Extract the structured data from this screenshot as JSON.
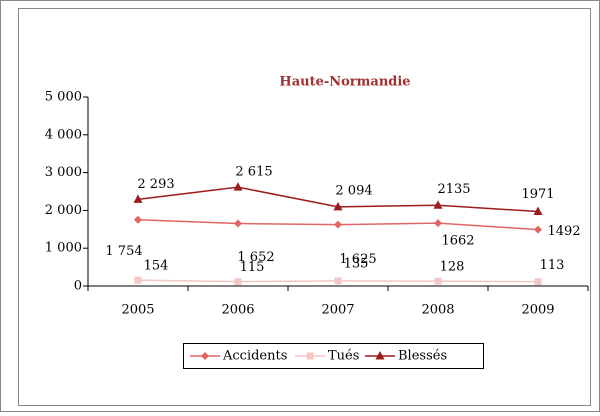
{
  "chart_data": {
    "type": "line",
    "title": "Haute-Normandie",
    "categories": [
      "2005",
      "2006",
      "2007",
      "2008",
      "2009"
    ],
    "series": [
      {
        "name": "Accidents",
        "color": "#e06666",
        "marker": "diamond",
        "values": [
          1754,
          1652,
          1625,
          1662,
          1492
        ],
        "value_labels": [
          "1 754",
          "1 652",
          "1 625",
          "1662",
          "1492"
        ]
      },
      {
        "name": "Tués",
        "color": "#f4c6c6",
        "marker": "square",
        "values": [
          154,
          115,
          135,
          128,
          113
        ]
      },
      {
        "name": "Blessés",
        "color": "#9b1c1c",
        "marker": "triangle",
        "values": [
          2293,
          2615,
          2094,
          2135,
          1971
        ],
        "value_labels": [
          "2 293",
          "2 615",
          "2 094",
          "2135",
          "1971"
        ]
      }
    ],
    "ylim": [
      0,
      5000
    ],
    "yticks": [
      0,
      {
        "value": 1000,
        "label": "1 000"
      },
      {
        "value": 2000,
        "label": "2 000"
      },
      {
        "value": 3000,
        "label": "3 000"
      },
      {
        "value": 4000,
        "label": "4 000"
      },
      {
        "value": 5000,
        "label": "5 000"
      }
    ],
    "legend": "bottom"
  }
}
